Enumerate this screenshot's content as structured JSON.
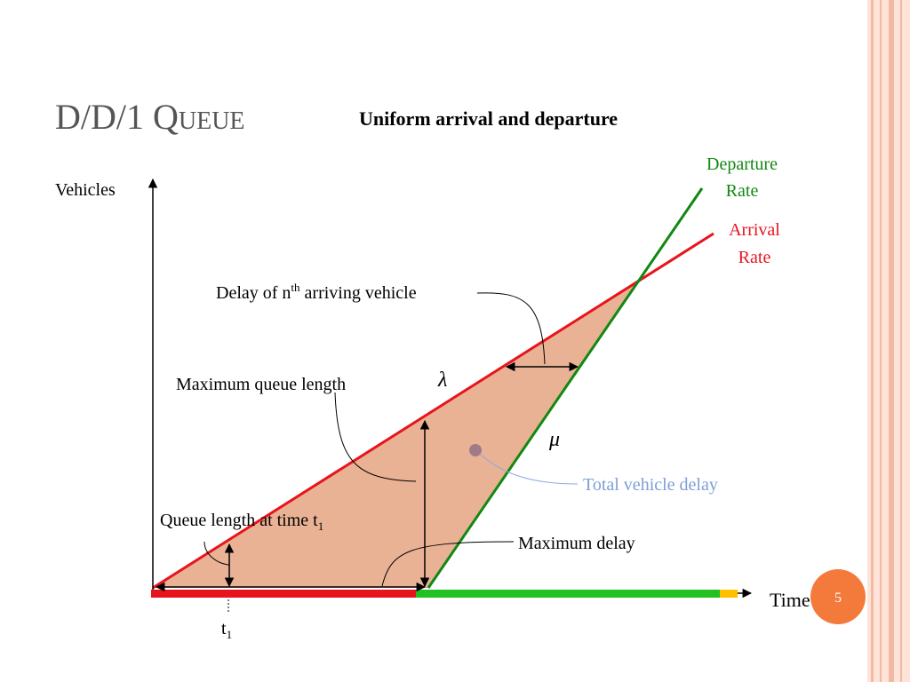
{
  "header": {
    "title": "D/D/1 Queue",
    "subtitle": "Uniform arrival and departure"
  },
  "diagram": {
    "y_axis_label": "Vehicles",
    "x_axis_label": "Time",
    "departure_rate": [
      "Departure",
      "Rate"
    ],
    "arrival_rate": [
      "Arrival",
      "Rate"
    ],
    "delay_nth": {
      "pre": "Delay of n",
      "sup": "th",
      "post": " arriving vehicle"
    },
    "max_queue_length": "Maximum queue length",
    "lambda": "λ",
    "mu": "μ",
    "total_delay": "Total vehicle delay",
    "queue_at_t1": {
      "pre": "Queue length at time t",
      "sub": "1"
    },
    "max_delay": "Maximum delay",
    "t1": {
      "pre": "t",
      "sub": "1"
    }
  },
  "footer": {
    "page_number": "5"
  }
}
